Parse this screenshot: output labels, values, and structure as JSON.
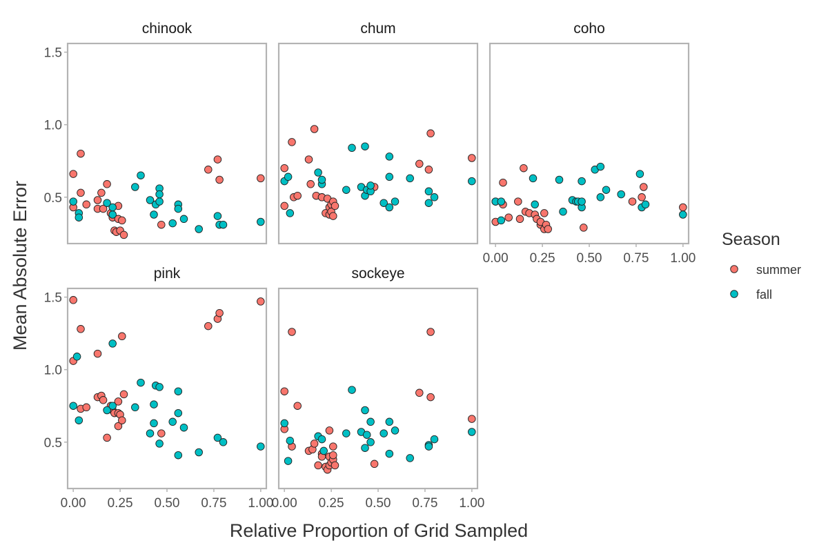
{
  "chart_data": {
    "type": "scatter",
    "title": "",
    "xlabel": "Relative Proportion of Grid Sampled",
    "ylabel": "Mean Absolute Error",
    "xlim": [
      -0.03,
      1.03
    ],
    "ylim": [
      0.18,
      1.56
    ],
    "x_ticks": [
      0,
      0.25,
      0.5,
      0.75,
      1
    ],
    "x_tick_labels": [
      "0.00",
      "0.25",
      "0.50",
      "0.75",
      "1.00"
    ],
    "y_ticks": [
      0.5,
      1.0,
      1.5
    ],
    "y_tick_labels": [
      "0.5",
      "1.0",
      "1.5"
    ],
    "grid": false,
    "legend": {
      "title": "Season",
      "position": "right",
      "entries": [
        {
          "key": "summer",
          "label": "summer",
          "color": "#F8766D"
        },
        {
          "key": "fall",
          "label": "fall",
          "color": "#00BFC4"
        }
      ]
    },
    "facets": [
      {
        "name": "chinook",
        "series": {
          "summer": [
            [
              0.0,
              0.66
            ],
            [
              0.0,
              0.43
            ],
            [
              0.04,
              0.8
            ],
            [
              0.04,
              0.53
            ],
            [
              0.07,
              0.45
            ],
            [
              0.13,
              0.48
            ],
            [
              0.13,
              0.42
            ],
            [
              0.15,
              0.53
            ],
            [
              0.16,
              0.42
            ],
            [
              0.18,
              0.59
            ],
            [
              0.2,
              0.39
            ],
            [
              0.21,
              0.36
            ],
            [
              0.22,
              0.27
            ],
            [
              0.23,
              0.26
            ],
            [
              0.24,
              0.35
            ],
            [
              0.24,
              0.44
            ],
            [
              0.25,
              0.27
            ],
            [
              0.26,
              0.34
            ],
            [
              0.27,
              0.24
            ],
            [
              0.47,
              0.31
            ],
            [
              0.72,
              0.69
            ],
            [
              0.77,
              0.76
            ],
            [
              0.78,
              0.62
            ],
            [
              1.0,
              0.63
            ]
          ],
          "fall": [
            [
              0.0,
              0.47
            ],
            [
              0.03,
              0.39
            ],
            [
              0.03,
              0.36
            ],
            [
              0.18,
              0.46
            ],
            [
              0.21,
              0.38
            ],
            [
              0.21,
              0.43
            ],
            [
              0.33,
              0.57
            ],
            [
              0.36,
              0.65
            ],
            [
              0.41,
              0.48
            ],
            [
              0.43,
              0.38
            ],
            [
              0.44,
              0.45
            ],
            [
              0.46,
              0.56
            ],
            [
              0.46,
              0.47
            ],
            [
              0.46,
              0.52
            ],
            [
              0.53,
              0.32
            ],
            [
              0.56,
              0.45
            ],
            [
              0.56,
              0.42
            ],
            [
              0.59,
              0.35
            ],
            [
              0.67,
              0.28
            ],
            [
              0.77,
              0.37
            ],
            [
              0.78,
              0.31
            ],
            [
              0.8,
              0.31
            ],
            [
              1.0,
              0.33
            ]
          ]
        }
      },
      {
        "name": "chum",
        "series": {
          "summer": [
            [
              0.0,
              0.7
            ],
            [
              0.0,
              0.44
            ],
            [
              0.04,
              0.88
            ],
            [
              0.05,
              0.5
            ],
            [
              0.07,
              0.51
            ],
            [
              0.13,
              0.76
            ],
            [
              0.14,
              0.59
            ],
            [
              0.16,
              0.97
            ],
            [
              0.17,
              0.51
            ],
            [
              0.2,
              0.5
            ],
            [
              0.2,
              0.5
            ],
            [
              0.22,
              0.39
            ],
            [
              0.23,
              0.49
            ],
            [
              0.24,
              0.38
            ],
            [
              0.24,
              0.43
            ],
            [
              0.25,
              0.45
            ],
            [
              0.25,
              0.4
            ],
            [
              0.26,
              0.47
            ],
            [
              0.26,
              0.37
            ],
            [
              0.27,
              0.44
            ],
            [
              0.48,
              0.57
            ],
            [
              0.72,
              0.73
            ],
            [
              0.77,
              0.69
            ],
            [
              0.78,
              0.94
            ],
            [
              1.0,
              0.77
            ]
          ],
          "fall": [
            [
              0.0,
              0.61
            ],
            [
              0.02,
              0.64
            ],
            [
              0.03,
              0.39
            ],
            [
              0.18,
              0.67
            ],
            [
              0.2,
              0.59
            ],
            [
              0.2,
              0.62
            ],
            [
              0.33,
              0.55
            ],
            [
              0.36,
              0.84
            ],
            [
              0.41,
              0.57
            ],
            [
              0.43,
              0.85
            ],
            [
              0.43,
              0.51
            ],
            [
              0.44,
              0.55
            ],
            [
              0.46,
              0.54
            ],
            [
              0.46,
              0.58
            ],
            [
              0.53,
              0.46
            ],
            [
              0.56,
              0.64
            ],
            [
              0.56,
              0.78
            ],
            [
              0.56,
              0.43
            ],
            [
              0.59,
              0.47
            ],
            [
              0.67,
              0.63
            ],
            [
              0.77,
              0.54
            ],
            [
              0.77,
              0.46
            ],
            [
              0.8,
              0.5
            ],
            [
              1.0,
              0.61
            ]
          ]
        }
      },
      {
        "name": "coho",
        "series": {
          "summer": [
            [
              0.0,
              0.33
            ],
            [
              0.0,
              0.47
            ],
            [
              0.04,
              0.6
            ],
            [
              0.04,
              0.45
            ],
            [
              0.07,
              0.36
            ],
            [
              0.12,
              0.47
            ],
            [
              0.13,
              0.35
            ],
            [
              0.15,
              0.7
            ],
            [
              0.16,
              0.4
            ],
            [
              0.18,
              0.39
            ],
            [
              0.21,
              0.38
            ],
            [
              0.22,
              0.35
            ],
            [
              0.24,
              0.31
            ],
            [
              0.24,
              0.33
            ],
            [
              0.26,
              0.39
            ],
            [
              0.26,
              0.28
            ],
            [
              0.27,
              0.31
            ],
            [
              0.28,
              0.28
            ],
            [
              0.47,
              0.29
            ],
            [
              0.73,
              0.47
            ],
            [
              0.78,
              0.5
            ],
            [
              0.79,
              0.57
            ],
            [
              1.0,
              0.43
            ]
          ],
          "fall": [
            [
              0.0,
              0.47
            ],
            [
              0.03,
              0.47
            ],
            [
              0.03,
              0.34
            ],
            [
              0.2,
              0.63
            ],
            [
              0.21,
              0.45
            ],
            [
              0.34,
              0.62
            ],
            [
              0.36,
              0.4
            ],
            [
              0.41,
              0.48
            ],
            [
              0.43,
              0.47
            ],
            [
              0.44,
              0.47
            ],
            [
              0.46,
              0.61
            ],
            [
              0.46,
              0.43
            ],
            [
              0.46,
              0.47
            ],
            [
              0.53,
              0.69
            ],
            [
              0.56,
              0.71
            ],
            [
              0.56,
              0.5
            ],
            [
              0.59,
              0.55
            ],
            [
              0.67,
              0.52
            ],
            [
              0.77,
              0.66
            ],
            [
              0.78,
              0.43
            ],
            [
              0.8,
              0.45
            ],
            [
              1.0,
              0.38
            ]
          ]
        }
      },
      {
        "name": "pink",
        "series": {
          "summer": [
            [
              0.0,
              1.48
            ],
            [
              0.0,
              1.06
            ],
            [
              0.04,
              1.28
            ],
            [
              0.04,
              0.73
            ],
            [
              0.07,
              0.74
            ],
            [
              0.13,
              1.11
            ],
            [
              0.13,
              0.81
            ],
            [
              0.15,
              0.82
            ],
            [
              0.16,
              0.79
            ],
            [
              0.18,
              0.53
            ],
            [
              0.2,
              0.75
            ],
            [
              0.21,
              0.72
            ],
            [
              0.22,
              0.7
            ],
            [
              0.24,
              0.7
            ],
            [
              0.24,
              0.78
            ],
            [
              0.24,
              0.61
            ],
            [
              0.25,
              0.69
            ],
            [
              0.26,
              0.65
            ],
            [
              0.26,
              1.23
            ],
            [
              0.27,
              0.83
            ],
            [
              0.47,
              0.56
            ],
            [
              0.72,
              1.3
            ],
            [
              0.77,
              1.35
            ],
            [
              0.78,
              1.39
            ],
            [
              1.0,
              1.47
            ]
          ],
          "fall": [
            [
              0.0,
              0.75
            ],
            [
              0.02,
              1.09
            ],
            [
              0.03,
              0.65
            ],
            [
              0.18,
              0.72
            ],
            [
              0.21,
              1.18
            ],
            [
              0.21,
              0.75
            ],
            [
              0.33,
              0.74
            ],
            [
              0.36,
              0.91
            ],
            [
              0.41,
              0.56
            ],
            [
              0.43,
              0.63
            ],
            [
              0.43,
              0.76
            ],
            [
              0.44,
              0.89
            ],
            [
              0.46,
              0.88
            ],
            [
              0.46,
              0.49
            ],
            [
              0.53,
              0.64
            ],
            [
              0.56,
              0.41
            ],
            [
              0.56,
              0.85
            ],
            [
              0.56,
              0.7
            ],
            [
              0.59,
              0.6
            ],
            [
              0.67,
              0.43
            ],
            [
              0.77,
              0.53
            ],
            [
              0.8,
              0.5
            ],
            [
              1.0,
              0.47
            ]
          ]
        }
      },
      {
        "name": "sockeye",
        "series": {
          "summer": [
            [
              0.0,
              0.85
            ],
            [
              0.0,
              0.59
            ],
            [
              0.04,
              1.26
            ],
            [
              0.04,
              0.47
            ],
            [
              0.07,
              0.75
            ],
            [
              0.13,
              0.44
            ],
            [
              0.15,
              0.45
            ],
            [
              0.16,
              0.49
            ],
            [
              0.18,
              0.34
            ],
            [
              0.2,
              0.42
            ],
            [
              0.2,
              0.4
            ],
            [
              0.22,
              0.33
            ],
            [
              0.23,
              0.31
            ],
            [
              0.24,
              0.58
            ],
            [
              0.24,
              0.34
            ],
            [
              0.24,
              0.4
            ],
            [
              0.25,
              0.36
            ],
            [
              0.26,
              0.38
            ],
            [
              0.26,
              0.41
            ],
            [
              0.26,
              0.47
            ],
            [
              0.27,
              0.34
            ],
            [
              0.48,
              0.35
            ],
            [
              0.72,
              0.84
            ],
            [
              0.78,
              0.81
            ],
            [
              0.78,
              1.26
            ],
            [
              1.0,
              0.66
            ]
          ],
          "fall": [
            [
              0.0,
              0.63
            ],
            [
              0.02,
              0.37
            ],
            [
              0.03,
              0.51
            ],
            [
              0.18,
              0.54
            ],
            [
              0.2,
              0.52
            ],
            [
              0.21,
              0.44
            ],
            [
              0.33,
              0.56
            ],
            [
              0.36,
              0.86
            ],
            [
              0.41,
              0.57
            ],
            [
              0.43,
              0.46
            ],
            [
              0.43,
              0.72
            ],
            [
              0.44,
              0.55
            ],
            [
              0.46,
              0.5
            ],
            [
              0.46,
              0.64
            ],
            [
              0.53,
              0.56
            ],
            [
              0.56,
              0.64
            ],
            [
              0.56,
              0.42
            ],
            [
              0.59,
              0.58
            ],
            [
              0.67,
              0.39
            ],
            [
              0.77,
              0.48
            ],
            [
              0.77,
              0.47
            ],
            [
              0.8,
              0.52
            ],
            [
              1.0,
              0.57
            ]
          ]
        }
      }
    ]
  }
}
